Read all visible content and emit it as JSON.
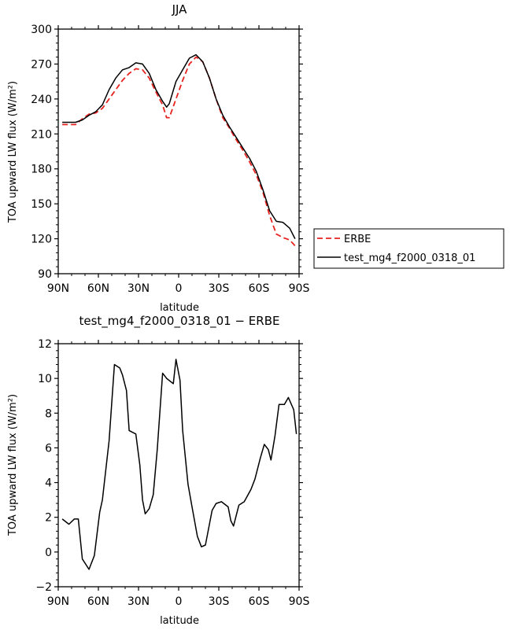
{
  "chart_data": [
    {
      "type": "line",
      "title": "JJA",
      "xlabel": "latitude",
      "ylabel": "TOA upward LW flux (W/m²)",
      "x_ticks": [
        "90N",
        "60N",
        "30N",
        "0",
        "30S",
        "60S",
        "90S"
      ],
      "y_ticks": [
        "90",
        "120",
        "150",
        "180",
        "210",
        "240",
        "270",
        "300"
      ],
      "xlim": [
        90,
        -90
      ],
      "ylim": [
        90,
        300
      ],
      "legend_position": "right",
      "series": [
        {
          "name": "ERBE",
          "color": "#e8231f",
          "dash": "dashed",
          "x": [
            87,
            82,
            77,
            72,
            67,
            62,
            57,
            52,
            47,
            42,
            37,
            32,
            27,
            22,
            17,
            12,
            9,
            7,
            2,
            -3,
            -8,
            -13,
            -18,
            -23,
            -28,
            -33,
            -38,
            -43,
            -48,
            -53,
            -58,
            -63,
            -68,
            -73,
            -78,
            -83,
            -87
          ],
          "values": [
            218,
            218,
            218,
            223,
            227,
            228,
            232,
            240,
            248,
            256,
            262,
            266,
            265,
            258,
            246,
            235,
            224,
            224,
            240,
            256,
            270,
            276,
            272,
            258,
            240,
            224,
            215,
            205,
            196,
            186,
            175,
            160,
            140,
            124,
            121,
            119,
            114
          ]
        },
        {
          "name": "test_mg4_f2000_0318_01",
          "color": "#000000",
          "dash": "solid",
          "x": [
            87,
            82,
            77,
            72,
            67,
            62,
            57,
            52,
            47,
            42,
            37,
            32,
            27,
            22,
            17,
            12,
            9,
            7,
            2,
            -3,
            -8,
            -13,
            -18,
            -23,
            -28,
            -33,
            -38,
            -43,
            -48,
            -53,
            -58,
            -63,
            -68,
            -73,
            -78,
            -83,
            -87
          ],
          "values": [
            220,
            220,
            220,
            222,
            226,
            229,
            235,
            248,
            258,
            265,
            267,
            271,
            270,
            262,
            248,
            238,
            233,
            236,
            255,
            265,
            275,
            278,
            272,
            258,
            240,
            226,
            216,
            207,
            198,
            189,
            178,
            162,
            144,
            135,
            134,
            129,
            120
          ]
        }
      ]
    },
    {
      "type": "line",
      "title": "test_mg4_f2000_0318_01 − ERBE",
      "xlabel": "latitude",
      "ylabel": "TOA upward LW flux (W/m²)",
      "x_ticks": [
        "90N",
        "60N",
        "30N",
        "0",
        "30S",
        "60S",
        "90S"
      ],
      "y_ticks": [
        "−2",
        "0",
        "2",
        "4",
        "6",
        "8",
        "10",
        "12"
      ],
      "xlim": [
        90,
        -90
      ],
      "ylim": [
        -2,
        12
      ],
      "series": [
        {
          "color": "#000000",
          "x": [
            87,
            82,
            78,
            75,
            72,
            67,
            63,
            59,
            57,
            52,
            48,
            44,
            42,
            39,
            37,
            32,
            29,
            27,
            25,
            22,
            19,
            16,
            12,
            9,
            4,
            2,
            -1,
            -3,
            -7,
            -10,
            -14,
            -17,
            -20,
            -25,
            -28,
            -32,
            -37,
            -39,
            -41,
            -45,
            -49,
            -54,
            -57,
            -61,
            -64,
            -67,
            -69,
            -72,
            -75,
            -79,
            -82,
            -86,
            -88
          ],
          "values": [
            1.9,
            1.6,
            1.9,
            1.9,
            -0.4,
            -1.0,
            -0.2,
            2.3,
            3.0,
            6.4,
            10.8,
            10.6,
            10.2,
            9.3,
            7.0,
            6.8,
            5.0,
            3.0,
            2.2,
            2.5,
            3.3,
            5.9,
            10.3,
            10.0,
            9.7,
            11.1,
            9.9,
            7.0,
            3.9,
            2.6,
            0.9,
            0.3,
            0.4,
            2.4,
            2.8,
            2.9,
            2.6,
            1.8,
            1.5,
            2.7,
            2.9,
            3.6,
            4.2,
            5.4,
            6.2,
            5.9,
            5.3,
            6.7,
            8.5,
            8.5,
            8.9,
            8.2,
            6.8
          ]
        }
      ]
    }
  ]
}
